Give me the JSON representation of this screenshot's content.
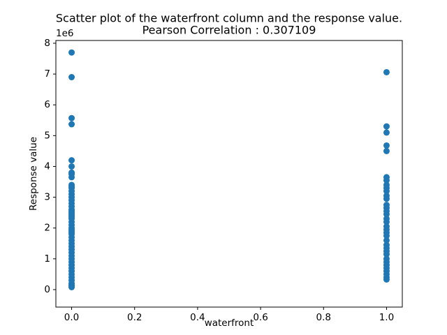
{
  "chart_data": {
    "type": "scatter",
    "title": [
      "Scatter plot of the waterfront column and the response value.",
      "Pearson Correlation : 0.307109"
    ],
    "x_label": "waterfront",
    "y_label": "Response value",
    "y_offset_label": "1e6",
    "color": "#1f77b4",
    "x": [
      0,
      0,
      0,
      0,
      0,
      0,
      0,
      0,
      0,
      0,
      0,
      0,
      0,
      0,
      0,
      0,
      0,
      0,
      0,
      0,
      0,
      0,
      0,
      0,
      0,
      0,
      0,
      0,
      0,
      0,
      0,
      0,
      0,
      0,
      0,
      0,
      0,
      0,
      0,
      0,
      0,
      0,
      0,
      0,
      0,
      0,
      0,
      0,
      0,
      0,
      0,
      1,
      1,
      1,
      1,
      1,
      1,
      1,
      1,
      1,
      1,
      1,
      1,
      1,
      1,
      1,
      1,
      1,
      1,
      1,
      1,
      1,
      1,
      1,
      1,
      1,
      1,
      1,
      1,
      1,
      1,
      1,
      1,
      1,
      1,
      1
    ],
    "y": [
      7700000,
      6900000,
      5570000,
      5370000,
      4200000,
      4000000,
      3800000,
      3750000,
      3650000,
      3400000,
      3350000,
      3300000,
      3200000,
      3100000,
      3000000,
      2900000,
      2800000,
      2700000,
      2600000,
      2550000,
      2500000,
      2450000,
      2400000,
      2350000,
      2300000,
      2200000,
      2100000,
      2000000,
      1950000,
      1900000,
      1850000,
      1800000,
      1700000,
      1600000,
      1500000,
      1400000,
      1300000,
      1200000,
      1100000,
      1000000,
      900000,
      800000,
      700000,
      600000,
      500000,
      400000,
      300000,
      200000,
      150000,
      100000,
      80000,
      7060000,
      5300000,
      5100000,
      4680000,
      4500000,
      3650000,
      3550000,
      3400000,
      3300000,
      3200000,
      3050000,
      2950000,
      2750000,
      2650000,
      2550000,
      2450000,
      2300000,
      2200000,
      2050000,
      1950000,
      1850000,
      1750000,
      1600000,
      1450000,
      1350000,
      1250000,
      1150000,
      1000000,
      900000,
      800000,
      700000,
      600000,
      500000,
      400000,
      330000
    ],
    "xlim": [
      -0.05,
      1.05
    ],
    "xticks": [
      {
        "value": 0,
        "label": "0.0"
      },
      0.2,
      0.4,
      0.6,
      0.8,
      {
        "value": 1,
        "label": "1.0"
      }
    ],
    "ylim": [
      -567000,
      8090000
    ],
    "yticks": [
      0,
      {
        "value": 1000000,
        "label": "1"
      },
      {
        "value": 2000000,
        "label": "2"
      },
      {
        "value": 3000000,
        "label": "3"
      },
      {
        "value": 4000000,
        "label": "4"
      },
      {
        "value": 5000000,
        "label": "5"
      },
      {
        "value": 6000000,
        "label": "6"
      },
      {
        "value": 7000000,
        "label": "7"
      },
      {
        "value": 8000000,
        "label": "8"
      }
    ]
  }
}
